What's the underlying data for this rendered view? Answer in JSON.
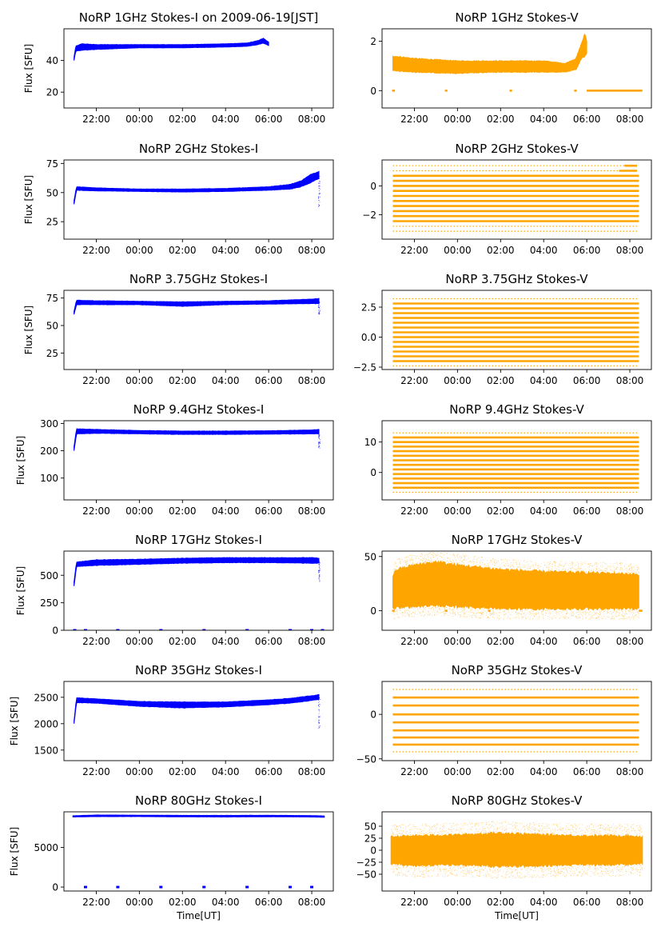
{
  "figure": {
    "xlabel": "Time[UT]",
    "colors": {
      "stokes_i": "#0000ff",
      "stokes_v": "#ffa500"
    },
    "x_tick_labels": [
      "22:00",
      "00:00",
      "02:00",
      "04:00",
      "06:00",
      "08:00"
    ]
  },
  "chart_data": [
    {
      "type": "scatter",
      "title": "NoRP 1GHz Stokes-I on 2009-06-19[JST]",
      "ylabel": "Flux [SFU]",
      "xlabel": "",
      "color": "#0000ff",
      "ylim": [
        10,
        60
      ],
      "y_ticks": [
        20,
        40
      ],
      "x_ticks": [
        "22:00",
        "00:00",
        "02:00",
        "04:00",
        "06:00",
        "08:00"
      ],
      "xlim": [
        "20:30",
        "09:00"
      ],
      "band": [
        [
          "20:58",
          40,
          42
        ],
        [
          "21:03",
          46,
          49
        ],
        [
          "21:20",
          46.5,
          50.5
        ],
        [
          "22:00",
          47,
          50
        ],
        [
          "00:00",
          48,
          50
        ],
        [
          "02:00",
          48,
          50
        ],
        [
          "04:00",
          48.5,
          50.5
        ],
        [
          "05:00",
          49,
          51
        ],
        [
          "05:30",
          50,
          52.5
        ],
        [
          "05:45",
          51,
          54
        ],
        [
          "06:00",
          49.5,
          51.5
        ]
      ]
    },
    {
      "type": "scatter",
      "title": "NoRP 1GHz Stokes-V",
      "ylabel": "",
      "xlabel": "",
      "color": "#ffa500",
      "ylim": [
        -0.7,
        2.5
      ],
      "y_ticks": [
        0,
        2
      ],
      "x_ticks": [
        "22:00",
        "00:00",
        "02:00",
        "04:00",
        "06:00",
        "08:00"
      ],
      "xlim": [
        "20:30",
        "09:00"
      ],
      "band": [
        [
          "21:00",
          0.8,
          1.4
        ],
        [
          "22:00",
          0.75,
          1.3
        ],
        [
          "00:00",
          0.7,
          1.2
        ],
        [
          "02:00",
          0.75,
          1.2
        ],
        [
          "04:00",
          0.75,
          1.2
        ],
        [
          "05:00",
          0.75,
          1.1
        ],
        [
          "05:30",
          0.85,
          1.3
        ],
        [
          "05:45",
          1.3,
          1.9
        ],
        [
          "05:55",
          1.4,
          2.3
        ],
        [
          "06:00",
          1.5,
          2.0
        ]
      ],
      "hlines": [
        [
          0,
          [
            "20:58",
            "21:06"
          ]
        ],
        [
          0,
          [
            "23:25",
            "23:32"
          ]
        ],
        [
          0,
          [
            "02:25",
            "02:32"
          ]
        ],
        [
          0,
          [
            "05:25",
            "05:32"
          ]
        ],
        [
          0,
          [
            "06:00",
            "08:35"
          ]
        ]
      ]
    },
    {
      "type": "scatter",
      "title": "NoRP 2GHz Stokes-I",
      "ylabel": "Flux [SFU]",
      "xlabel": "",
      "color": "#0000ff",
      "ylim": [
        10,
        78
      ],
      "y_ticks": [
        25,
        50,
        75
      ],
      "x_ticks": [
        "22:00",
        "00:00",
        "02:00",
        "04:00",
        "06:00",
        "08:00"
      ],
      "xlim": [
        "20:30",
        "09:00"
      ],
      "band": [
        [
          "20:58",
          40,
          43
        ],
        [
          "21:05",
          52,
          55
        ],
        [
          "22:00",
          51.5,
          54
        ],
        [
          "00:00",
          51,
          53
        ],
        [
          "02:00",
          50.5,
          53
        ],
        [
          "04:00",
          51,
          53.5
        ],
        [
          "06:00",
          52,
          55
        ],
        [
          "07:00",
          53,
          57
        ],
        [
          "07:30",
          55,
          60
        ],
        [
          "08:00",
          59,
          66
        ],
        [
          "08:20",
          62,
          68
        ]
      ],
      "spikes": [
        [
          "08:20",
          38,
          65
        ]
      ]
    },
    {
      "type": "scatter",
      "title": "NoRP 2GHz Stokes-V",
      "ylabel": "",
      "xlabel": "",
      "color": "#ffa500",
      "ylim": [
        -3.7,
        1.8
      ],
      "y_ticks": [
        -2,
        0
      ],
      "x_ticks": [
        "22:00",
        "00:00",
        "02:00",
        "04:00",
        "06:00",
        "08:00"
      ],
      "xlim": [
        "20:30",
        "09:00"
      ],
      "levels": [
        0.7,
        0.35,
        0,
        -0.35,
        -0.7,
        -1.05,
        -1.4,
        -1.75,
        -2.1,
        -2.45
      ],
      "level_range": [
        "21:00",
        "08:25"
      ],
      "sparse_levels": [
        1.05,
        1.4,
        -2.8,
        -3.15
      ],
      "short_levels": [
        [
          1.05,
          [
            "07:30",
            "08:20"
          ]
        ],
        [
          1.4,
          [
            "07:45",
            "08:20"
          ]
        ]
      ]
    },
    {
      "type": "scatter",
      "title": "NoRP 3.75GHz Stokes-I",
      "ylabel": "Flux [SFU]",
      "xlabel": "",
      "color": "#0000ff",
      "ylim": [
        10,
        82
      ],
      "y_ticks": [
        25,
        50,
        75
      ],
      "x_ticks": [
        "22:00",
        "00:00",
        "02:00",
        "04:00",
        "06:00",
        "08:00"
      ],
      "xlim": [
        "20:30",
        "09:00"
      ],
      "band": [
        [
          "20:58",
          60,
          63
        ],
        [
          "21:05",
          69,
          73
        ],
        [
          "22:00",
          69,
          72.5
        ],
        [
          "00:00",
          69,
          72
        ],
        [
          "02:00",
          67.5,
          71.5
        ],
        [
          "04:00",
          69,
          72
        ],
        [
          "06:00",
          69.5,
          72.5
        ],
        [
          "08:00",
          70,
          74
        ],
        [
          "08:20",
          70,
          74.5
        ]
      ],
      "spikes": [
        [
          "08:20",
          60,
          72
        ]
      ]
    },
    {
      "type": "scatter",
      "title": "NoRP 3.75GHz Stokes-V",
      "ylabel": "",
      "xlabel": "",
      "color": "#ffa500",
      "ylim": [
        -2.7,
        3.9
      ],
      "y_ticks": [
        -2.5,
        0.0,
        2.5
      ],
      "tick_decimals": 1,
      "x_ticks": [
        "22:00",
        "00:00",
        "02:00",
        "04:00",
        "06:00",
        "08:00"
      ],
      "xlim": [
        "20:30",
        "09:00"
      ],
      "levels": [
        2.8,
        2.4,
        2.0,
        1.6,
        1.2,
        0.8,
        0.4,
        0,
        -0.4,
        -0.8,
        -1.2,
        -1.6,
        -2.0
      ],
      "level_range": [
        "21:00",
        "08:25"
      ],
      "sparse_levels": [
        3.2,
        -2.4
      ]
    },
    {
      "type": "scatter",
      "title": "NoRP 9.4GHz Stokes-I",
      "ylabel": "Flux [SFU]",
      "xlabel": "",
      "color": "#0000ff",
      "ylim": [
        20,
        310
      ],
      "y_ticks": [
        100,
        200,
        300
      ],
      "x_ticks": [
        "22:00",
        "00:00",
        "02:00",
        "04:00",
        "06:00",
        "08:00"
      ],
      "xlim": [
        "20:30",
        "09:00"
      ],
      "band": [
        [
          "20:58",
          200,
          215
        ],
        [
          "21:05",
          262,
          280
        ],
        [
          "22:00",
          264,
          278
        ],
        [
          "00:00",
          262,
          274
        ],
        [
          "02:00",
          260,
          272
        ],
        [
          "04:00",
          260,
          272
        ],
        [
          "06:00",
          261,
          273
        ],
        [
          "08:00",
          262,
          276
        ],
        [
          "08:20",
          262,
          278
        ]
      ],
      "spikes": [
        [
          "08:20",
          210,
          265
        ]
      ]
    },
    {
      "type": "scatter",
      "title": "NoRP 9.4GHz Stokes-V",
      "ylabel": "",
      "xlabel": "",
      "color": "#ffa500",
      "ylim": [
        -9,
        17
      ],
      "y_ticks": [
        0,
        10
      ],
      "x_ticks": [
        "22:00",
        "00:00",
        "02:00",
        "04:00",
        "06:00",
        "08:00"
      ],
      "xlim": [
        "20:30",
        "09:00"
      ],
      "levels": [
        11.5,
        10,
        8.5,
        7,
        5.5,
        4,
        2.5,
        1,
        -0.5,
        -2,
        -3.5,
        -5
      ],
      "level_range": [
        "21:00",
        "08:25"
      ],
      "sparse_levels": [
        13,
        -6.5
      ]
    },
    {
      "type": "scatter",
      "title": "NoRP 17GHz Stokes-I",
      "ylabel": "Flux [SFU]",
      "xlabel": "",
      "color": "#0000ff",
      "ylim": [
        0,
        720
      ],
      "y_ticks": [
        0,
        250,
        500
      ],
      "x_ticks": [
        "22:00",
        "00:00",
        "02:00",
        "04:00",
        "06:00",
        "08:00"
      ],
      "xlim": [
        "20:30",
        "09:00"
      ],
      "band": [
        [
          "20:58",
          400,
          440
        ],
        [
          "21:05",
          580,
          620
        ],
        [
          "22:00",
          590,
          640
        ],
        [
          "00:00",
          600,
          645
        ],
        [
          "02:00",
          610,
          655
        ],
        [
          "04:00",
          615,
          660
        ],
        [
          "06:00",
          615,
          660
        ],
        [
          "08:00",
          610,
          660
        ],
        [
          "08:20",
          610,
          655
        ]
      ],
      "spikes": [
        [
          "08:20",
          440,
          630
        ]
      ],
      "ticks_at_zero": [
        "21:00",
        "21:30",
        "23:00",
        "01:00",
        "03:00",
        "05:00",
        "07:00",
        "08:00",
        "08:30"
      ]
    },
    {
      "type": "scatter",
      "title": "NoRP 17GHz Stokes-V",
      "ylabel": "",
      "xlabel": "",
      "color": "#ffa500",
      "ylim": [
        -18,
        55
      ],
      "y_ticks": [
        0,
        50
      ],
      "x_ticks": [
        "22:00",
        "00:00",
        "02:00",
        "04:00",
        "06:00",
        "08:00"
      ],
      "xlim": [
        "20:30",
        "09:00"
      ],
      "band": [
        [
          "21:00",
          2,
          32
        ],
        [
          "21:10",
          3,
          38
        ],
        [
          "22:00",
          4,
          42
        ],
        [
          "23:00",
          5,
          45
        ],
        [
          "00:00",
          4,
          42
        ],
        [
          "01:00",
          3,
          40
        ],
        [
          "02:00",
          2,
          38
        ],
        [
          "04:00",
          2,
          36
        ],
        [
          "06:00",
          2,
          35
        ],
        [
          "08:00",
          2,
          34
        ],
        [
          "08:25",
          2,
          33
        ]
      ],
      "halo": 10,
      "hlines": [
        [
          0,
          [
            "20:58",
            "21:05"
          ]
        ],
        [
          0,
          [
            "23:25",
            "23:32"
          ]
        ],
        [
          0,
          [
            "01:25",
            "01:32"
          ]
        ],
        [
          0,
          [
            "08:25",
            "08:35"
          ]
        ]
      ]
    },
    {
      "type": "scatter",
      "title": "NoRP 35GHz Stokes-I",
      "ylabel": "Flux [SFU]",
      "xlabel": "",
      "color": "#0000ff",
      "ylim": [
        1300,
        2800
      ],
      "y_ticks": [
        1500,
        2000,
        2500
      ],
      "x_ticks": [
        "22:00",
        "00:00",
        "02:00",
        "04:00",
        "06:00",
        "08:00"
      ],
      "xlim": [
        "20:30",
        "09:00"
      ],
      "band": [
        [
          "20:58",
          2000,
          2050
        ],
        [
          "21:05",
          2400,
          2490
        ],
        [
          "22:00",
          2390,
          2470
        ],
        [
          "00:00",
          2330,
          2420
        ],
        [
          "02:00",
          2300,
          2410
        ],
        [
          "04:00",
          2320,
          2410
        ],
        [
          "06:00",
          2360,
          2450
        ],
        [
          "07:00",
          2390,
          2480
        ],
        [
          "08:00",
          2440,
          2530
        ],
        [
          "08:20",
          2460,
          2550
        ]
      ],
      "spikes": [
        [
          "08:20",
          1900,
          2500
        ]
      ]
    },
    {
      "type": "scatter",
      "title": "NoRP 35GHz Stokes-V",
      "ylabel": "",
      "xlabel": "",
      "color": "#ffa500",
      "ylim": [
        -52,
        37
      ],
      "y_ticks": [
        -50,
        0
      ],
      "x_ticks": [
        "22:00",
        "00:00",
        "02:00",
        "04:00",
        "06:00",
        "08:00"
      ],
      "xlim": [
        "20:30",
        "09:00"
      ],
      "levels": [
        19,
        10,
        0,
        -9,
        -18,
        -26,
        -34
      ],
      "level_range": [
        "21:00",
        "08:25"
      ],
      "sparse_levels": [
        28,
        -42
      ]
    },
    {
      "type": "scatter",
      "title": "NoRP 80GHz Stokes-I",
      "ylabel": "Flux [SFU]",
      "xlabel": "Time[UT]",
      "color": "#0000ff",
      "ylim": [
        -500,
        9500
      ],
      "y_ticks": [
        0,
        5000
      ],
      "x_ticks": [
        "22:00",
        "00:00",
        "02:00",
        "04:00",
        "06:00",
        "08:00"
      ],
      "xlim": [
        "20:30",
        "09:00"
      ],
      "band": [
        [
          "20:55",
          8850,
          9000
        ],
        [
          "22:00",
          8900,
          9100
        ],
        [
          "00:00",
          8900,
          9080
        ],
        [
          "02:00",
          8870,
          9050
        ],
        [
          "04:00",
          8850,
          9050
        ],
        [
          "06:00",
          8880,
          9060
        ],
        [
          "08:00",
          8850,
          9030
        ],
        [
          "08:35",
          8820,
          8980
        ]
      ],
      "ticks_at_zero": [
        "21:30",
        "23:00",
        "01:00",
        "03:00",
        "05:00",
        "07:00",
        "08:00"
      ]
    },
    {
      "type": "scatter",
      "title": "NoRP 80GHz Stokes-V",
      "ylabel": "",
      "xlabel": "Time[UT]",
      "color": "#ffa500",
      "ylim": [
        -85,
        80
      ],
      "y_ticks": [
        -50,
        -25,
        0,
        25,
        50
      ],
      "x_ticks": [
        "22:00",
        "00:00",
        "02:00",
        "04:00",
        "06:00",
        "08:00"
      ],
      "xlim": [
        "20:30",
        "09:00"
      ],
      "band": [
        [
          "20:55",
          -28,
          28
        ],
        [
          "22:00",
          -32,
          30
        ],
        [
          "00:00",
          -30,
          32
        ],
        [
          "02:00",
          -34,
          36
        ],
        [
          "04:00",
          -32,
          32
        ],
        [
          "06:00",
          -30,
          30
        ],
        [
          "08:00",
          -30,
          30
        ],
        [
          "08:35",
          -28,
          28
        ]
      ],
      "halo": 25
    }
  ]
}
